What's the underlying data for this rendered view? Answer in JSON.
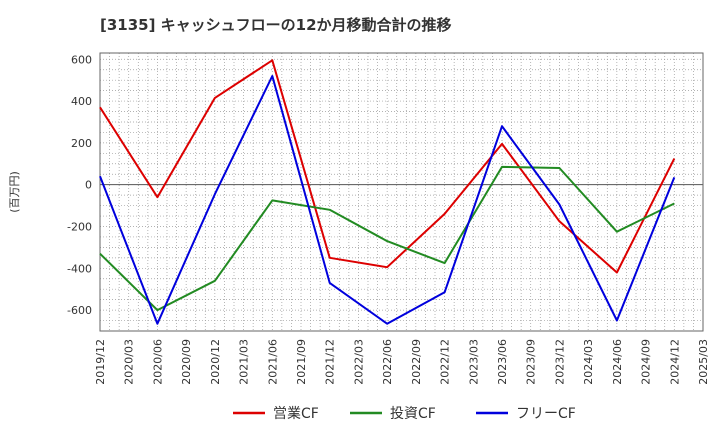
{
  "chart_data": {
    "type": "line",
    "title": "[3135]  キャッシュフローの12か月移動合計の推移",
    "ylabel": "(百万円)",
    "xlabel": "",
    "ylim": [
      -700,
      630
    ],
    "yticks": [
      600,
      400,
      200,
      0,
      -200,
      -400,
      -600
    ],
    "x": [
      "2019/12",
      "2020/03",
      "2020/06",
      "2020/09",
      "2020/12",
      "2021/03",
      "2021/06",
      "2021/09",
      "2021/12",
      "2022/03",
      "2022/06",
      "2022/09",
      "2022/12",
      "2023/03",
      "2023/06",
      "2023/09",
      "2023/12",
      "2024/03",
      "2024/06",
      "2024/09",
      "2024/12",
      "2025/03"
    ],
    "series": [
      {
        "name": "営業CF",
        "color": "#dd0000",
        "values": [
          370,
          null,
          -60,
          null,
          415,
          null,
          595,
          null,
          -350,
          null,
          -395,
          null,
          -140,
          null,
          195,
          null,
          -175,
          null,
          -420,
          null,
          125,
          null
        ]
      },
      {
        "name": "投資CF",
        "color": "#228b22",
        "values": [
          -330,
          null,
          -600,
          null,
          -460,
          null,
          -75,
          null,
          -120,
          null,
          -270,
          null,
          -375,
          null,
          85,
          null,
          80,
          null,
          -225,
          null,
          -90,
          null
        ]
      },
      {
        "name": "フリーCF",
        "color": "#0000dd",
        "values": [
          40,
          null,
          -665,
          null,
          -45,
          null,
          520,
          null,
          -470,
          null,
          -665,
          null,
          -515,
          null,
          280,
          null,
          -95,
          null,
          -650,
          null,
          35,
          null
        ]
      }
    ],
    "grid": true,
    "legend_position": "bottom"
  }
}
